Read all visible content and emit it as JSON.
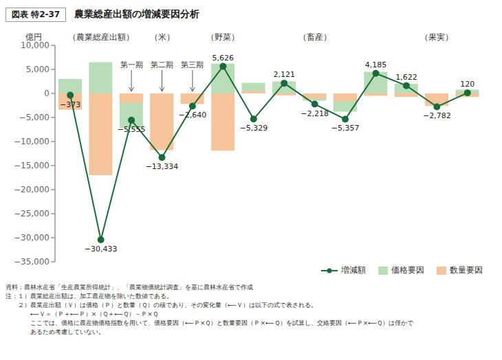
{
  "chart_data": {
    "type": "bar",
    "title": "農業総産出額の増減要因分析",
    "subtitle": "図表 特2-37",
    "y_label": "億円",
    "categories": [
      null,
      "（農業総産出額）",
      null,
      "（米）",
      null,
      "（野菜）",
      null,
      null,
      "（畜産）",
      null,
      null,
      null,
      "（果実）",
      null
    ],
    "series": [
      {
        "name": "増減額",
        "type": "line",
        "color": "#1a6b3a",
        "marker": "circle",
        "data_labels": true,
        "values": [
          -373,
          -30433,
          -5555,
          -13334,
          -2640,
          5626,
          -5329,
          2121,
          -2218,
          -5357,
          4185,
          1622,
          -2782,
          120
        ],
        "value_labels": [
          "−373",
          "−30,433",
          "−5,555",
          "−13,334",
          "−2,640",
          "5,626",
          "−5,329",
          "2,121",
          "−2,218",
          "−5,357",
          "4,185",
          "1,622",
          "−2,782",
          "120"
        ]
      },
      {
        "name": "価格要因",
        "type": "bar",
        "color": "#b8ddb8",
        "values": [
          3000,
          6500,
          -7200,
          -10200,
          -500,
          6200,
          2200,
          2500,
          -1500,
          -3800,
          4500,
          2000,
          -400,
          800
        ]
      },
      {
        "name": "数量要因",
        "type": "bar",
        "color": "#f5c49a",
        "values": [
          -3400,
          -17000,
          -2000,
          -11800,
          -2200,
          -11900,
          500,
          -400,
          -1100,
          -1600,
          -500,
          -700,
          -2600,
          -700
        ]
      }
    ],
    "ylim": [
      -35000,
      10000
    ],
    "yticks": [
      {
        "value": -35000,
        "label": "−35,000"
      },
      {
        "value": -30000,
        "label": "−30,000"
      },
      {
        "value": -25000,
        "label": "−25,000"
      },
      {
        "value": -20000,
        "label": "−20,000"
      },
      {
        "value": -15000,
        "label": "−15,000"
      },
      {
        "value": -10000,
        "label": "−10,000"
      },
      {
        "value": -5000,
        "label": "−5,000"
      },
      0,
      {
        "value": 5000,
        "label": "5,000"
      },
      {
        "value": 10000,
        "label": "10,000"
      }
    ],
    "grid": false,
    "legend": "lower right",
    "annotations": [
      {
        "text": "第一期",
        "index": 2
      },
      {
        "text": "第二期",
        "index": 3
      },
      {
        "text": "第三期",
        "index": 4
      }
    ],
    "source": "資料：農林水産省「生産農業所得統計」、「農業物価統計調査」を基に農林水産省で作成",
    "notes": [
      "注：１）農業総産出額は、加工農産物を除いた数値である。",
      "　　２）農業産出額（Ｖ）は価格（Ｐ）と数量（Ｑ）の積であり、その変化量（⟵Ｖ）は以下の式で表される。",
      "　　　　⟵Ｖ＝（Ｐ＋⟵Ｐ）×（Ｑ＋⟵Ｑ）－Ｐ×Ｑ",
      "　　　　ここでは、価格に農産物価格指数を用いて、価格要因（⟵Ｐ×Ｑ）と数量要因（Ｐ×⟵Ｑ）を試算し、交絡要因（⟵Ｐ×⟵Ｑ）は僅かで",
      "　　　　あるため考慮していない。"
    ]
  }
}
